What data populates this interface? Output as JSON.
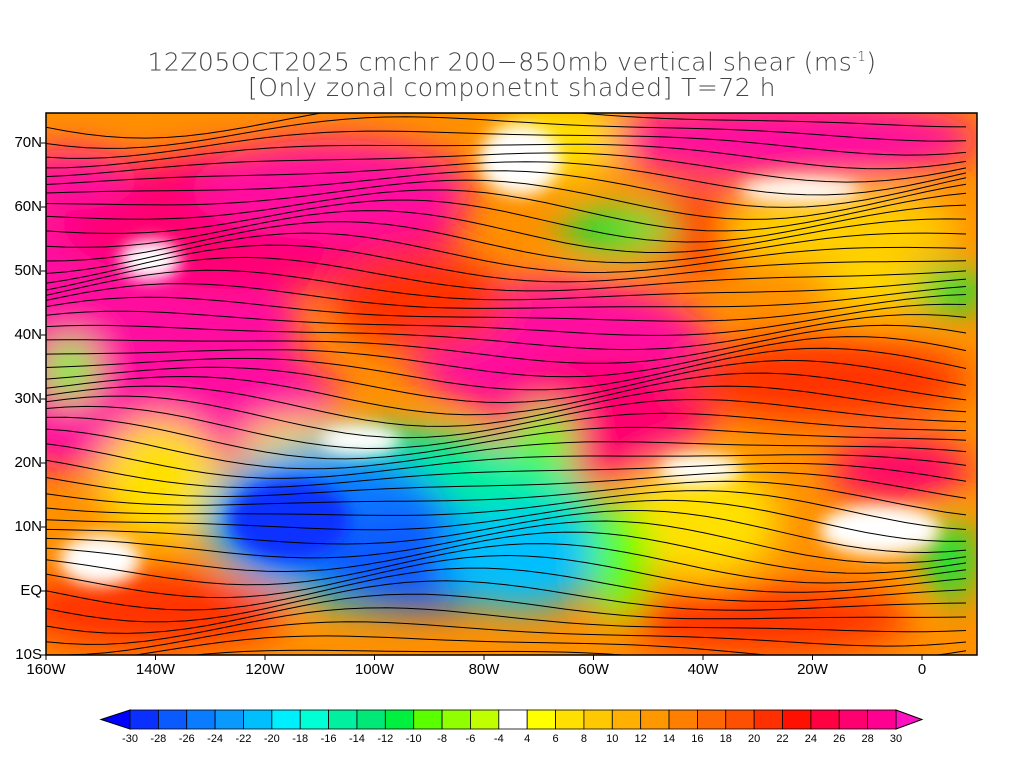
{
  "title": {
    "line1_main": "12Z05OCT2025 cmchr 200−850mb vertical shear (ms",
    "line1_sup": "-1",
    "line1_end": ")",
    "line2": "[Only zonal componetnt shaded] T=72 h"
  },
  "lat_labels": [
    "70N",
    "60N",
    "50N",
    "40N",
    "30N",
    "20N",
    "10N",
    "EQ",
    "10S"
  ],
  "lon_labels": [
    "160W",
    "140W",
    "120W",
    "100W",
    "80W",
    "60W",
    "40W",
    "20W",
    "0"
  ],
  "colorbar": {
    "labels": [
      "-30",
      "-28",
      "-26",
      "-24",
      "-22",
      "-20",
      "-18",
      "-16",
      "-14",
      "-12",
      "-10",
      "-8",
      "-6",
      "-4",
      "4",
      "6",
      "8",
      "10",
      "12",
      "14",
      "16",
      "18",
      "20",
      "22",
      "24",
      "26",
      "28",
      "30"
    ],
    "colors": [
      "#0a30ff",
      "#0a5aff",
      "#0a7cff",
      "#0a9aff",
      "#00bfff",
      "#00efff",
      "#00ffd5",
      "#00f0a0",
      "#00e878",
      "#00f040",
      "#5aff00",
      "#90ff00",
      "#c0ff00",
      "#ffffff",
      "#ffff00",
      "#ffe000",
      "#ffc800",
      "#ffb000",
      "#ff9800",
      "#ff8000",
      "#ff6800",
      "#ff5000",
      "#ff3000",
      "#ff1000",
      "#ff0040",
      "#ff0070",
      "#ff0090"
    ],
    "under_color": "#0000ff",
    "over_color": "#ff10c0"
  }
}
